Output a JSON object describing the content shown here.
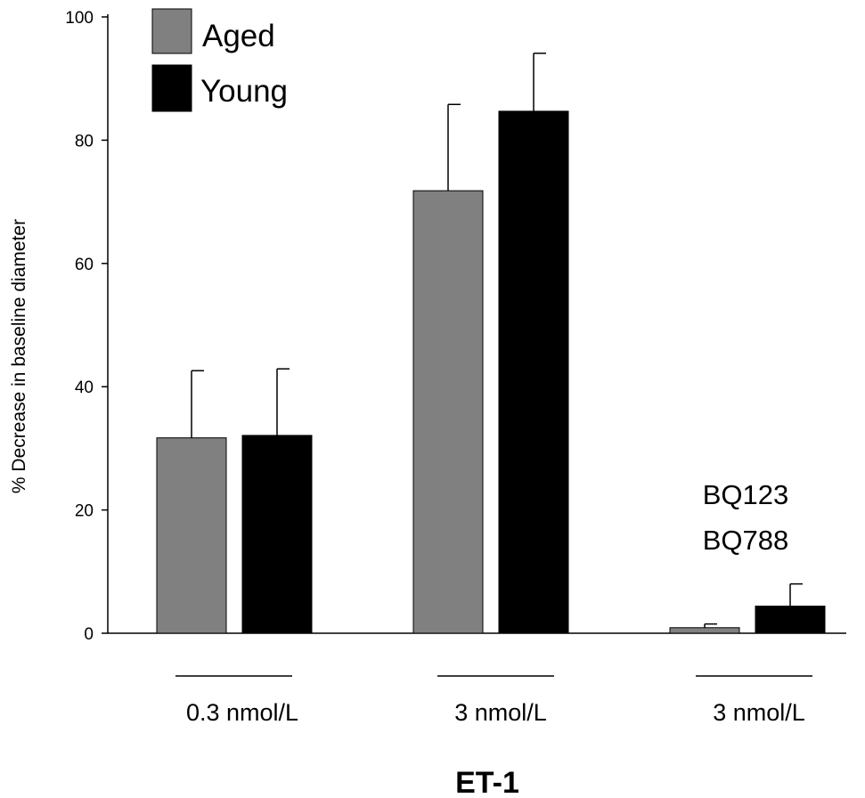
{
  "chart_data": {
    "type": "bar",
    "ylabel": "% Decrease in baseline diameter",
    "xtitle": "ET-1",
    "ylim": [
      0,
      100
    ],
    "yticks": [
      0,
      20,
      40,
      60,
      80,
      100
    ],
    "grid": false,
    "legend_position": "top-left",
    "categories": [
      "0.3 nmol/L",
      "3 nmol/L",
      "3 nmol/L"
    ],
    "series": [
      {
        "name": "Aged",
        "color": "#808080",
        "values": [
          31.7,
          71.8,
          0.9
        ],
        "errors": [
          10.9,
          14.0,
          0.6
        ]
      },
      {
        "name": "Young",
        "color": "#000000",
        "values": [
          32.1,
          84.7,
          4.4
        ],
        "errors": [
          10.8,
          9.4,
          3.6
        ]
      }
    ],
    "annotations": [
      {
        "category_index": 2,
        "lines": [
          "BQ123",
          "BQ788"
        ]
      }
    ]
  }
}
